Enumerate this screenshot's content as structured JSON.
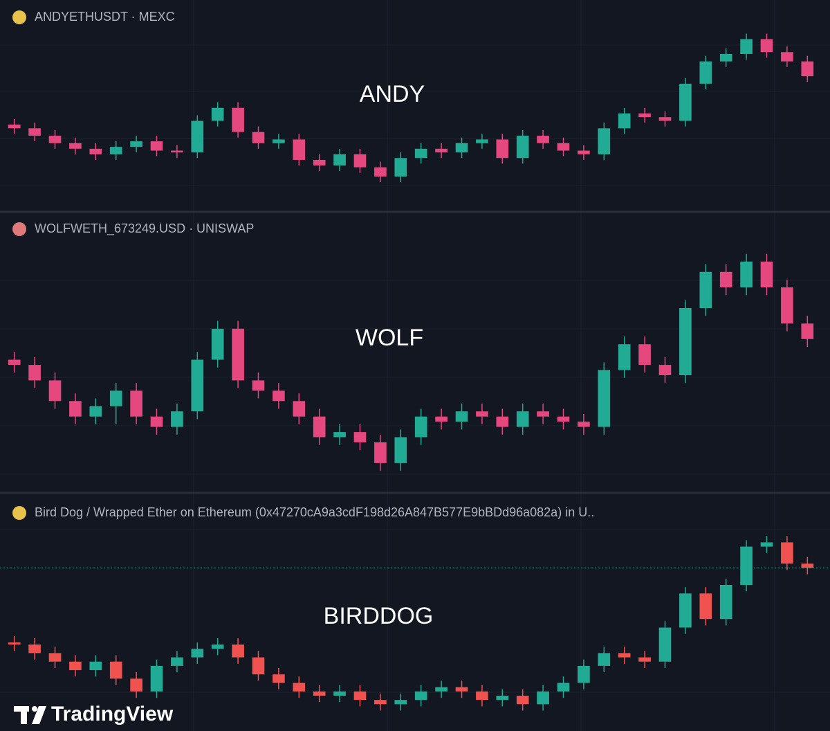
{
  "chart_data": [
    {
      "type": "candlestick",
      "title": "ANDYETHUSDT · MEXC",
      "label": "ANDY",
      "up_color": "#22ab94",
      "down_color": "#e5477f",
      "ylim": [
        5,
        100
      ],
      "open": [
        46,
        44,
        40,
        36,
        33,
        30,
        34,
        37,
        32,
        31,
        48,
        55,
        42,
        36,
        38,
        27,
        24,
        30,
        23,
        18,
        28,
        33,
        31,
        36,
        38,
        28,
        40,
        36,
        32,
        30,
        44,
        52,
        50,
        48,
        68,
        80,
        84,
        92,
        85,
        80
      ],
      "high": [
        49,
        47,
        43,
        39,
        36,
        37,
        40,
        40,
        35,
        51,
        58,
        58,
        45,
        41,
        41,
        30,
        33,
        33,
        26,
        31,
        36,
        36,
        39,
        41,
        41,
        43,
        43,
        39,
        35,
        47,
        55,
        55,
        53,
        71,
        83,
        87,
        95,
        95,
        88,
        83
      ],
      "low": [
        41,
        37,
        33,
        30,
        27,
        27,
        31,
        29,
        28,
        28,
        45,
        39,
        33,
        33,
        24,
        21,
        21,
        20,
        15,
        15,
        25,
        28,
        28,
        33,
        25,
        25,
        33,
        29,
        27,
        27,
        41,
        47,
        45,
        45,
        65,
        77,
        81,
        82,
        77,
        69
      ],
      "close": [
        44,
        40,
        36,
        33,
        30,
        34,
        37,
        32,
        31,
        48,
        55,
        42,
        36,
        38,
        27,
        24,
        30,
        23,
        18,
        28,
        33,
        31,
        36,
        38,
        28,
        40,
        36,
        32,
        30,
        44,
        52,
        50,
        48,
        68,
        80,
        84,
        92,
        85,
        80,
        72
      ]
    },
    {
      "type": "candlestick",
      "title": "WOLFWETH_673249.USD · UNISWAP",
      "label": "WOLF",
      "up_color": "#22ab94",
      "down_color": "#e5477f",
      "ylim": [
        5,
        98
      ],
      "open": [
        52,
        50,
        44,
        36,
        30,
        34,
        40,
        30,
        26,
        32,
        52,
        64,
        44,
        40,
        36,
        30,
        22,
        24,
        20,
        12,
        22,
        30,
        28,
        32,
        30,
        26,
        32,
        30,
        28,
        26,
        48,
        58,
        50,
        46,
        72,
        86,
        80,
        90,
        80,
        66
      ],
      "high": [
        55,
        53,
        47,
        39,
        37,
        43,
        43,
        33,
        35,
        55,
        67,
        67,
        47,
        43,
        39,
        33,
        27,
        27,
        23,
        25,
        33,
        33,
        35,
        35,
        33,
        35,
        35,
        33,
        31,
        51,
        61,
        61,
        53,
        75,
        89,
        89,
        93,
        93,
        83,
        69
      ],
      "low": [
        47,
        41,
        33,
        27,
        27,
        27,
        27,
        23,
        23,
        29,
        49,
        41,
        37,
        33,
        27,
        19,
        19,
        17,
        9,
        9,
        19,
        25,
        25,
        27,
        23,
        23,
        27,
        25,
        23,
        23,
        45,
        47,
        43,
        43,
        69,
        77,
        77,
        77,
        63,
        57
      ],
      "close": [
        50,
        44,
        36,
        30,
        34,
        40,
        30,
        26,
        32,
        52,
        64,
        44,
        40,
        36,
        30,
        22,
        24,
        20,
        12,
        22,
        30,
        28,
        32,
        30,
        26,
        32,
        30,
        28,
        26,
        48,
        58,
        50,
        46,
        72,
        86,
        80,
        90,
        80,
        66,
        60
      ]
    },
    {
      "type": "candlestick",
      "title": "Bird Dog / Wrapped Ether on Ethereum (0x47270cA9a3cdF198d26A847B577E9bBDd96a082a) in U..",
      "label": "BIRDDOG",
      "up_color": "#22ab94",
      "down_color": "#f0524f",
      "ylim": [
        25,
        116
      ],
      "price_line": true,
      "open": [
        63,
        62,
        58,
        54,
        50,
        54,
        46,
        40,
        52,
        56,
        60,
        62,
        56,
        48,
        44,
        40,
        38,
        40,
        36,
        34,
        36,
        40,
        42,
        40,
        36,
        38,
        34,
        40,
        44,
        52,
        58,
        56,
        54,
        70,
        86,
        74,
        90,
        108,
        110,
        100
      ],
      "high": [
        66,
        65,
        61,
        57,
        57,
        57,
        49,
        55,
        59,
        63,
        65,
        65,
        59,
        51,
        47,
        43,
        43,
        43,
        39,
        39,
        43,
        45,
        45,
        43,
        41,
        41,
        43,
        47,
        55,
        61,
        61,
        59,
        73,
        89,
        89,
        93,
        111,
        113,
        113,
        103
      ],
      "low": [
        59,
        55,
        51,
        47,
        47,
        43,
        37,
        37,
        49,
        53,
        57,
        53,
        45,
        41,
        37,
        35,
        35,
        33,
        31,
        31,
        33,
        37,
        37,
        33,
        33,
        31,
        31,
        37,
        41,
        49,
        53,
        51,
        51,
        67,
        71,
        71,
        87,
        105,
        97,
        95
      ],
      "close": [
        62,
        58,
        54,
        50,
        54,
        46,
        40,
        52,
        56,
        60,
        62,
        56,
        48,
        44,
        40,
        38,
        40,
        36,
        34,
        36,
        40,
        42,
        40,
        36,
        38,
        34,
        40,
        44,
        52,
        58,
        56,
        54,
        70,
        86,
        74,
        90,
        108,
        110,
        100,
        98
      ]
    }
  ],
  "watermark": "TradingView"
}
